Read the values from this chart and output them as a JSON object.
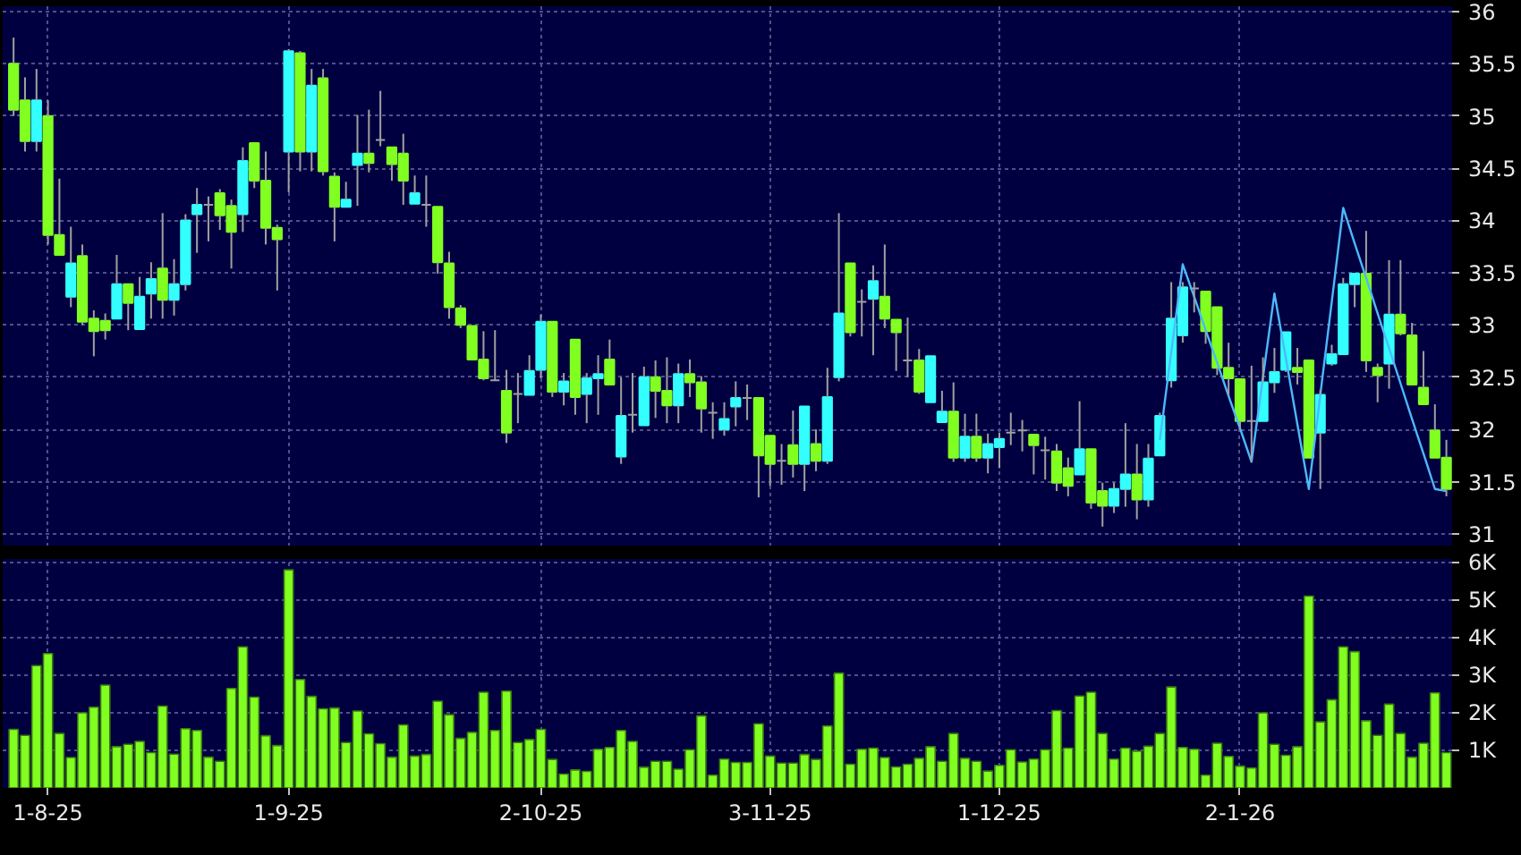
{
  "chart_data": [
    {
      "type": "candlestick",
      "tick_labels": "y",
      "grid": true,
      "categories": [
        null,
        null,
        null,
        null,
        null,
        null,
        null,
        null,
        null,
        null,
        null,
        null,
        null,
        null,
        null,
        null,
        null,
        null,
        null,
        null,
        null,
        null,
        null,
        null,
        null,
        null,
        null,
        null,
        null,
        null,
        null,
        null,
        null,
        null,
        null,
        null,
        null,
        null,
        null,
        null,
        null,
        null,
        null,
        null,
        null,
        null,
        null,
        null,
        null,
        null,
        null,
        null,
        null,
        null,
        null,
        null,
        null,
        null,
        null,
        null,
        null,
        null,
        null,
        null,
        null,
        null,
        null,
        null,
        null,
        null,
        null,
        null,
        null,
        null,
        null,
        null,
        null,
        null,
        null,
        null,
        null,
        null,
        null,
        null,
        null,
        null,
        null,
        null,
        null,
        null,
        null,
        null,
        null,
        null,
        null,
        null,
        null,
        null,
        null,
        null,
        null,
        null,
        null,
        null,
        null,
        null,
        null,
        null,
        null,
        null,
        null,
        null,
        null,
        null,
        null,
        null,
        null,
        null,
        null,
        null,
        null,
        null,
        null,
        null,
        null,
        null
      ],
      "ylim": [
        30.88,
        36.05
      ],
      "yticks": [
        31,
        31.5,
        32,
        32.5,
        33,
        33.5,
        34,
        34.5,
        35,
        35.5,
        36
      ],
      "ohlc": [
        [
          35.5,
          35.75,
          35.0,
          35.06
        ],
        [
          35.15,
          35.37,
          34.66,
          34.76
        ],
        [
          34.76,
          35.45,
          34.66,
          35.15
        ],
        [
          35.0,
          35.15,
          33.77,
          33.86
        ],
        [
          33.86,
          34.4,
          33.67,
          33.67
        ],
        [
          33.27,
          33.94,
          33.17,
          33.59
        ],
        [
          33.66,
          33.77,
          33.0,
          33.03
        ],
        [
          33.06,
          33.14,
          32.7,
          32.94
        ],
        [
          33.04,
          33.11,
          32.86,
          32.95
        ],
        [
          33.06,
          33.67,
          33.06,
          33.39
        ],
        [
          33.39,
          33.39,
          32.95,
          33.21
        ],
        [
          32.96,
          33.46,
          32.96,
          33.27
        ],
        [
          33.3,
          33.6,
          33.06,
          33.44
        ],
        [
          33.54,
          34.07,
          33.06,
          33.24
        ],
        [
          33.24,
          33.63,
          33.09,
          33.39
        ],
        [
          33.39,
          34.06,
          33.33,
          34.0
        ],
        [
          34.06,
          34.31,
          33.69,
          34.15
        ],
        [
          34.15,
          34.23,
          33.8,
          34.15
        ],
        [
          34.26,
          34.3,
          33.91,
          34.05
        ],
        [
          34.14,
          34.2,
          33.54,
          33.89
        ],
        [
          34.06,
          34.7,
          33.89,
          34.57
        ],
        [
          34.74,
          34.74,
          34.31,
          34.38
        ],
        [
          34.38,
          34.66,
          33.77,
          33.93
        ],
        [
          33.93,
          33.96,
          33.33,
          33.82
        ],
        [
          34.66,
          35.64,
          34.27,
          35.62
        ],
        [
          35.6,
          35.62,
          34.47,
          34.66
        ],
        [
          34.66,
          35.45,
          34.47,
          35.29
        ],
        [
          35.36,
          35.45,
          34.43,
          34.47
        ],
        [
          34.42,
          34.46,
          33.8,
          34.13
        ],
        [
          34.13,
          34.37,
          34.13,
          34.2
        ],
        [
          34.53,
          35.01,
          34.14,
          34.64
        ],
        [
          34.64,
          35.06,
          34.46,
          34.55
        ],
        [
          34.77,
          35.24,
          34.71,
          34.77
        ],
        [
          34.7,
          34.7,
          34.38,
          34.54
        ],
        [
          34.64,
          34.83,
          34.15,
          34.38
        ],
        [
          34.16,
          34.43,
          34.16,
          34.26
        ],
        [
          34.15,
          34.43,
          33.94,
          34.15
        ],
        [
          34.13,
          34.13,
          33.49,
          33.6
        ],
        [
          33.59,
          33.7,
          33.06,
          33.17
        ],
        [
          33.16,
          33.19,
          32.97,
          33.0
        ],
        [
          32.99,
          32.99,
          32.67,
          32.67
        ],
        [
          32.67,
          32.94,
          32.47,
          32.49
        ],
        [
          32.47,
          32.95,
          32.47,
          32.47
        ],
        [
          32.37,
          32.57,
          31.87,
          31.97
        ],
        [
          32.34,
          32.54,
          32.06,
          32.34
        ],
        [
          32.33,
          32.71,
          32.33,
          32.56
        ],
        [
          32.57,
          33.1,
          32.49,
          33.03
        ],
        [
          33.03,
          33.03,
          32.31,
          32.36
        ],
        [
          32.36,
          32.54,
          32.23,
          32.46
        ],
        [
          32.86,
          32.86,
          32.14,
          32.31
        ],
        [
          32.34,
          32.54,
          32.06,
          32.49
        ],
        [
          32.49,
          32.71,
          32.14,
          32.53
        ],
        [
          32.67,
          32.86,
          32.43,
          32.43
        ],
        [
          31.74,
          32.5,
          31.67,
          32.13
        ],
        [
          32.14,
          32.54,
          31.97,
          32.14
        ],
        [
          32.04,
          32.6,
          32.04,
          32.5
        ],
        [
          32.5,
          32.66,
          32.11,
          32.37
        ],
        [
          32.37,
          32.69,
          32.06,
          32.23
        ],
        [
          32.23,
          32.63,
          32.06,
          32.53
        ],
        [
          32.53,
          32.67,
          32.31,
          32.45
        ],
        [
          32.45,
          32.51,
          31.97,
          32.2
        ],
        [
          32.16,
          32.26,
          31.91,
          32.16
        ],
        [
          32.0,
          32.26,
          31.94,
          32.1
        ],
        [
          32.22,
          32.46,
          32.03,
          32.3
        ],
        [
          32.3,
          32.43,
          32.09,
          32.3
        ],
        [
          32.3,
          32.3,
          31.35,
          31.75
        ],
        [
          31.94,
          31.94,
          31.46,
          31.67
        ],
        [
          31.7,
          31.86,
          31.47,
          31.7
        ],
        [
          31.85,
          32.18,
          31.54,
          31.67
        ],
        [
          31.67,
          32.22,
          31.41,
          32.22
        ],
        [
          31.86,
          32.0,
          31.6,
          31.7
        ],
        [
          31.7,
          32.59,
          31.67,
          32.31
        ],
        [
          32.5,
          34.07,
          32.46,
          33.11
        ],
        [
          33.59,
          33.59,
          32.89,
          32.93
        ],
        [
          33.22,
          33.34,
          32.89,
          33.22
        ],
        [
          33.25,
          33.57,
          32.71,
          33.42
        ],
        [
          33.27,
          33.77,
          32.97,
          33.06
        ],
        [
          33.05,
          33.05,
          32.56,
          32.93
        ],
        [
          32.66,
          33.07,
          32.5,
          32.66
        ],
        [
          32.66,
          32.77,
          32.34,
          32.36
        ],
        [
          32.26,
          32.7,
          32.26,
          32.7
        ],
        [
          32.07,
          32.37,
          32.07,
          32.17
        ],
        [
          32.17,
          32.45,
          31.69,
          31.73
        ],
        [
          31.73,
          32.15,
          31.69,
          31.93
        ],
        [
          31.93,
          32.15,
          31.69,
          31.73
        ],
        [
          31.73,
          31.96,
          31.58,
          31.86
        ],
        [
          31.83,
          31.97,
          31.63,
          31.91
        ],
        [
          31.97,
          32.16,
          31.85,
          31.97
        ],
        [
          31.99,
          32.09,
          31.79,
          31.99
        ],
        [
          31.95,
          31.95,
          31.57,
          31.85
        ],
        [
          31.8,
          31.93,
          31.52,
          31.8
        ],
        [
          31.79,
          31.86,
          31.41,
          31.49
        ],
        [
          31.63,
          31.73,
          31.36,
          31.46
        ],
        [
          31.57,
          32.27,
          31.57,
          31.81
        ],
        [
          31.81,
          31.81,
          31.24,
          31.3
        ],
        [
          31.41,
          31.49,
          31.07,
          31.27
        ],
        [
          31.27,
          31.49,
          31.2,
          31.43
        ],
        [
          31.43,
          32.06,
          31.26,
          31.57
        ],
        [
          31.57,
          31.86,
          31.14,
          31.33
        ],
        [
          31.33,
          31.86,
          31.26,
          31.72
        ],
        [
          31.75,
          32.16,
          31.75,
          32.13
        ],
        [
          32.47,
          33.41,
          32.4,
          33.06
        ],
        [
          32.9,
          33.41,
          32.83,
          33.36
        ],
        [
          33.35,
          33.41,
          33.12,
          33.35
        ],
        [
          33.32,
          33.32,
          32.82,
          32.94
        ],
        [
          33.17,
          33.17,
          32.52,
          32.59
        ],
        [
          32.59,
          32.83,
          32.32,
          32.49
        ],
        [
          32.48,
          32.48,
          32.0,
          32.08
        ],
        [
          32.08,
          32.61,
          31.69,
          32.08
        ],
        [
          32.08,
          32.69,
          32.08,
          32.45
        ],
        [
          32.45,
          32.78,
          32.35,
          32.55
        ],
        [
          32.57,
          32.93,
          32.55,
          32.93
        ],
        [
          32.59,
          32.78,
          32.43,
          32.55
        ],
        [
          32.66,
          32.66,
          31.73,
          31.73
        ],
        [
          31.97,
          32.38,
          31.43,
          32.33
        ],
        [
          32.63,
          32.81,
          32.61,
          32.72
        ],
        [
          32.72,
          33.45,
          32.72,
          33.39
        ],
        [
          33.39,
          33.49,
          33.17,
          33.49
        ],
        [
          33.49,
          33.9,
          32.55,
          32.66
        ],
        [
          32.59,
          32.63,
          32.26,
          32.52
        ],
        [
          32.63,
          33.62,
          32.39,
          33.1
        ],
        [
          33.1,
          33.62,
          32.9,
          32.92
        ],
        [
          32.9,
          33.02,
          32.43,
          32.43
        ],
        [
          32.4,
          32.75,
          32.24,
          32.24
        ],
        [
          31.99,
          32.24,
          31.73,
          31.73
        ],
        [
          31.73,
          31.9,
          31.36,
          31.43
        ]
      ],
      "colors": [
        "#80ff20",
        "#80ff20",
        "#33ffff",
        "#80ff20",
        "#80ff20",
        "#33ffff",
        "#80ff20",
        "#80ff20",
        "#80ff20",
        "#33ffff",
        "#80ff20",
        "#33ffff",
        "#33ffff",
        "#80ff20",
        "#33ffff",
        "#33ffff",
        "#33ffff",
        "#a0a0a0",
        "#80ff20",
        "#80ff20",
        "#33ffff",
        "#80ff20",
        "#80ff20",
        "#80ff20",
        "#33ffff",
        "#80ff20",
        "#33ffff",
        "#80ff20",
        "#80ff20",
        "#33ffff",
        "#33ffff",
        "#80ff20",
        "#a0a0a0",
        "#80ff20",
        "#80ff20",
        "#33ffff",
        "#a0a0a0",
        "#80ff20",
        "#80ff20",
        "#80ff20",
        "#80ff20",
        "#80ff20",
        "#a0a0a0",
        "#80ff20",
        "#a0a0a0",
        "#33ffff",
        "#33ffff",
        "#80ff20",
        "#33ffff",
        "#80ff20",
        "#33ffff",
        "#33ffff",
        "#80ff20",
        "#33ffff",
        "#a0a0a0",
        "#33ffff",
        "#80ff20",
        "#80ff20",
        "#33ffff",
        "#80ff20",
        "#80ff20",
        "#a0a0a0",
        "#33ffff",
        "#33ffff",
        "#a0a0a0",
        "#80ff20",
        "#80ff20",
        "#a0a0a0",
        "#80ff20",
        "#33ffff",
        "#80ff20",
        "#33ffff",
        "#33ffff",
        "#80ff20",
        "#a0a0a0",
        "#33ffff",
        "#80ff20",
        "#80ff20",
        "#a0a0a0",
        "#80ff20",
        "#33ffff",
        "#33ffff",
        "#80ff20",
        "#33ffff",
        "#80ff20",
        "#33ffff",
        "#33ffff",
        "#a0a0a0",
        "#a0a0a0",
        "#80ff20",
        "#a0a0a0",
        "#80ff20",
        "#80ff20",
        "#33ffff",
        "#80ff20",
        "#80ff20",
        "#33ffff",
        "#33ffff",
        "#80ff20",
        "#33ffff",
        "#33ffff",
        "#33ffff",
        "#33ffff",
        "#a0a0a0",
        "#80ff20",
        "#80ff20",
        "#80ff20",
        "#80ff20",
        "#a0a0a0",
        "#33ffff",
        "#33ffff",
        "#33ffff",
        "#80ff20",
        "#80ff20",
        "#33ffff",
        "#33ffff",
        "#33ffff",
        "#33ffff",
        "#80ff20",
        "#80ff20",
        "#33ffff",
        "#80ff20",
        "#80ff20",
        "#80ff20",
        "#80ff20",
        "#80ff20"
      ],
      "series": [
        {
          "type": "line",
          "color": "#4db8ff",
          "values": [
            null,
            null,
            null,
            null,
            null,
            null,
            null,
            null,
            null,
            null,
            null,
            null,
            null,
            null,
            null,
            null,
            null,
            null,
            null,
            null,
            null,
            null,
            null,
            null,
            null,
            null,
            null,
            null,
            null,
            null,
            null,
            null,
            null,
            null,
            null,
            null,
            null,
            null,
            null,
            null,
            null,
            null,
            null,
            null,
            null,
            null,
            null,
            null,
            null,
            null,
            null,
            null,
            null,
            null,
            null,
            null,
            null,
            null,
            null,
            null,
            null,
            null,
            null,
            null,
            null,
            null,
            null,
            null,
            null,
            null,
            null,
            null,
            null,
            null,
            null,
            null,
            null,
            null,
            null,
            null,
            null,
            null,
            null,
            null,
            null,
            null,
            null,
            null,
            null,
            null,
            null,
            null,
            null,
            null,
            null,
            null,
            null,
            null,
            null,
            null,
            31.9,
            32.74,
            33.58,
            33.27,
            32.95,
            32.64,
            32.32,
            32.01,
            31.69,
            32.5,
            33.3,
            32.68,
            32.05,
            31.43,
            32.33,
            33.22,
            34.12,
            33.78,
            33.45,
            33.11,
            32.78,
            32.44,
            32.1,
            31.77,
            31.43,
            31.41
          ]
        }
      ]
    },
    {
      "type": "bar",
      "grid": true,
      "color": "#80ff20",
      "categories": [
        null,
        null,
        null,
        "1-8-25",
        null,
        null,
        null,
        null,
        null,
        null,
        null,
        null,
        null,
        null,
        null,
        null,
        null,
        null,
        null,
        null,
        null,
        null,
        null,
        null,
        "1-9-25",
        null,
        null,
        null,
        null,
        null,
        null,
        null,
        null,
        null,
        null,
        null,
        null,
        null,
        null,
        null,
        null,
        null,
        null,
        null,
        null,
        null,
        "2-10-25",
        null,
        null,
        null,
        null,
        null,
        null,
        null,
        null,
        null,
        null,
        null,
        null,
        null,
        null,
        null,
        null,
        null,
        null,
        null,
        "3-11-25",
        null,
        null,
        null,
        null,
        null,
        null,
        null,
        null,
        null,
        null,
        null,
        null,
        null,
        null,
        null,
        null,
        null,
        null,
        null,
        "1-12-25",
        null,
        null,
        null,
        null,
        null,
        null,
        null,
        null,
        null,
        null,
        null,
        null,
        null,
        null,
        null,
        null,
        null,
        null,
        null,
        null,
        "2-1-26",
        null,
        null,
        null,
        null,
        null,
        null,
        null,
        null,
        null,
        null,
        null,
        null,
        null,
        null,
        null,
        null,
        null,
        null
      ],
      "ylim": [
        0,
        6100
      ],
      "yticks": [
        {
          "value": 1000,
          "label": "1K"
        },
        {
          "value": 2000,
          "label": "2K"
        },
        {
          "value": 3000,
          "label": "3K"
        },
        {
          "value": 4000,
          "label": "4K"
        },
        {
          "value": 5000,
          "label": "5K"
        },
        {
          "value": 6000,
          "label": "6K"
        }
      ],
      "values": [
        1560,
        1400,
        3260,
        3580,
        1450,
        810,
        2000,
        2150,
        2740,
        1100,
        1160,
        1240,
        940,
        2180,
        900,
        1580,
        1530,
        820,
        710,
        2650,
        3760,
        2420,
        1390,
        1130,
        5810,
        2890,
        2440,
        2110,
        2130,
        1210,
        2050,
        1440,
        1180,
        820,
        1680,
        850,
        890,
        2310,
        1950,
        1320,
        1480,
        2550,
        1530,
        2580,
        1210,
        1290,
        1560,
        760,
        370,
        480,
        440,
        1030,
        1080,
        1530,
        1240,
        550,
        710,
        710,
        500,
        1020,
        1920,
        340,
        770,
        680,
        680,
        1710,
        850,
        660,
        660,
        890,
        760,
        1650,
        3060,
        630,
        1030,
        1060,
        810,
        560,
        630,
        790,
        1100,
        710,
        1450,
        790,
        710,
        450,
        600,
        1020,
        690,
        770,
        1020,
        2060,
        1060,
        2450,
        2550,
        1450,
        770,
        1060,
        980,
        1110,
        1450,
        2690,
        1080,
        1030,
        340,
        1190,
        840,
        580,
        530,
        2000,
        1160,
        870,
        1100,
        5110,
        1760,
        2350,
        3760,
        3630,
        1790,
        1400,
        2230,
        1450,
        820,
        1190,
        2530,
        940
      ]
    }
  ]
}
